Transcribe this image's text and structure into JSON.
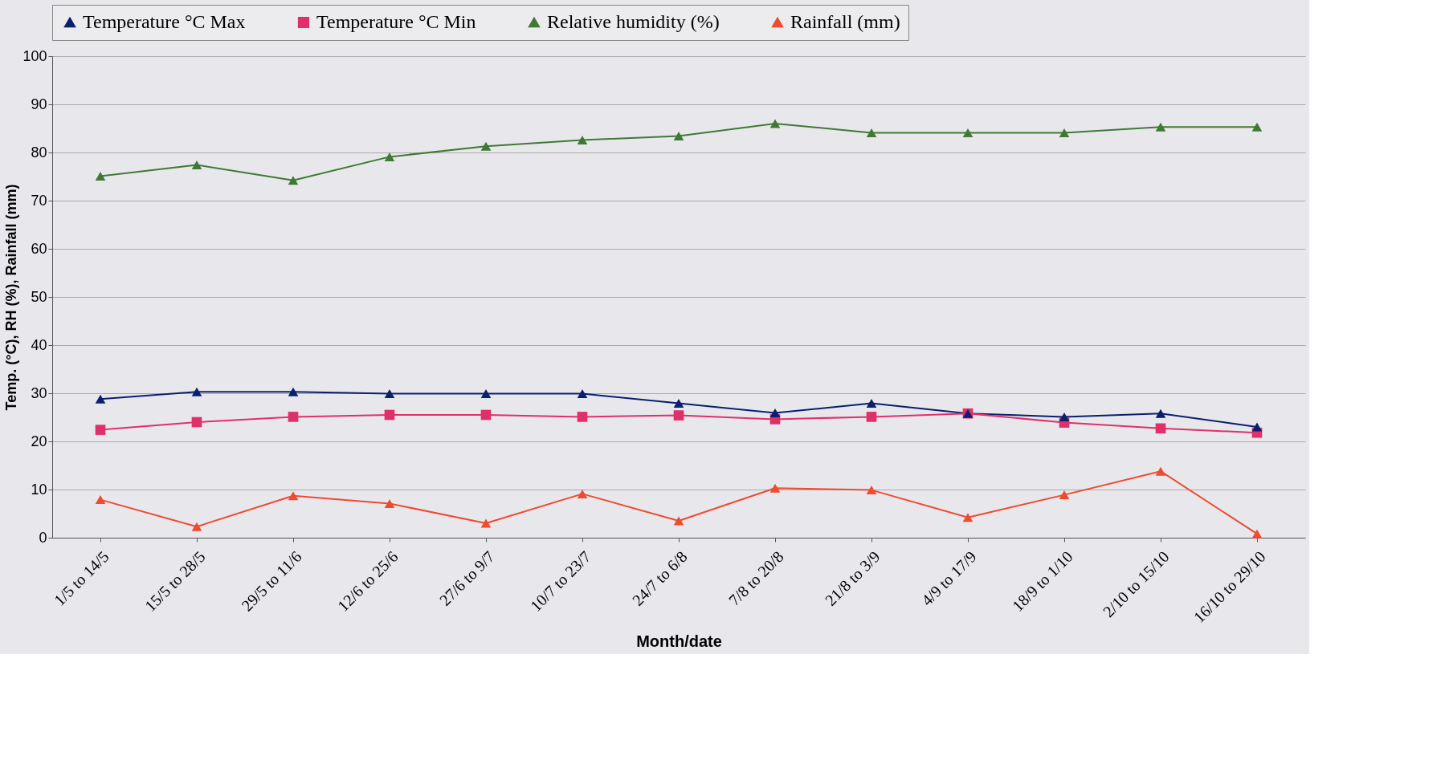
{
  "chart_data": {
    "type": "line",
    "xlabel": "Month/date",
    "ylabel": "Temp. (°C), RH (%), Rainfall (mm)",
    "categories": [
      "1/5 to 14/5",
      "15/5 to 28/5",
      "29/5 to 11/6",
      "12/6 to 25/6",
      "27/6 to 9/7",
      "10/7 to 23/7",
      "24/7 to 6/8",
      "7/8 to 20/8",
      "21/8 to 3/9",
      "4/9 to 17/9",
      "18/9 to 1/10",
      "2/10 to 15/10",
      "16/10 to 29/10"
    ],
    "series": [
      {
        "name": "Temperature °C Max",
        "color": "#0a1f6e",
        "marker": "triangle",
        "values": [
          28.8,
          30.3,
          30.3,
          29.9,
          29.9,
          29.9,
          27.9,
          25.9,
          27.9,
          25.8,
          25.1,
          25.8,
          23.0
        ]
      },
      {
        "name": "Temperature °C Min",
        "color": "#e0306a",
        "marker": "square",
        "values": [
          22.4,
          24.0,
          25.1,
          25.5,
          25.5,
          25.1,
          25.4,
          24.6,
          25.1,
          25.8,
          23.9,
          22.7,
          21.8
        ]
      },
      {
        "name": "Relative humidity (%)",
        "color": "#3f7a35",
        "marker": "triangle",
        "values": [
          75.1,
          77.4,
          74.2,
          79.1,
          81.3,
          82.6,
          83.4,
          86.0,
          84.1,
          84.1,
          84.1,
          85.3,
          85.3
        ]
      },
      {
        "name": "Rainfall (mm)",
        "color": "#f04a30",
        "marker": "triangle",
        "values": [
          7.9,
          2.3,
          8.7,
          7.1,
          3.0,
          9.1,
          3.5,
          10.3,
          9.9,
          4.2,
          8.9,
          13.8,
          0.8
        ]
      }
    ],
    "ylim": [
      0,
      100
    ],
    "yticks": [
      0,
      10,
      20,
      30,
      40,
      50,
      60,
      70,
      80,
      90,
      100
    ],
    "grid": "y",
    "legend": "top",
    "marker": "triangle",
    "line_style": "solid"
  }
}
